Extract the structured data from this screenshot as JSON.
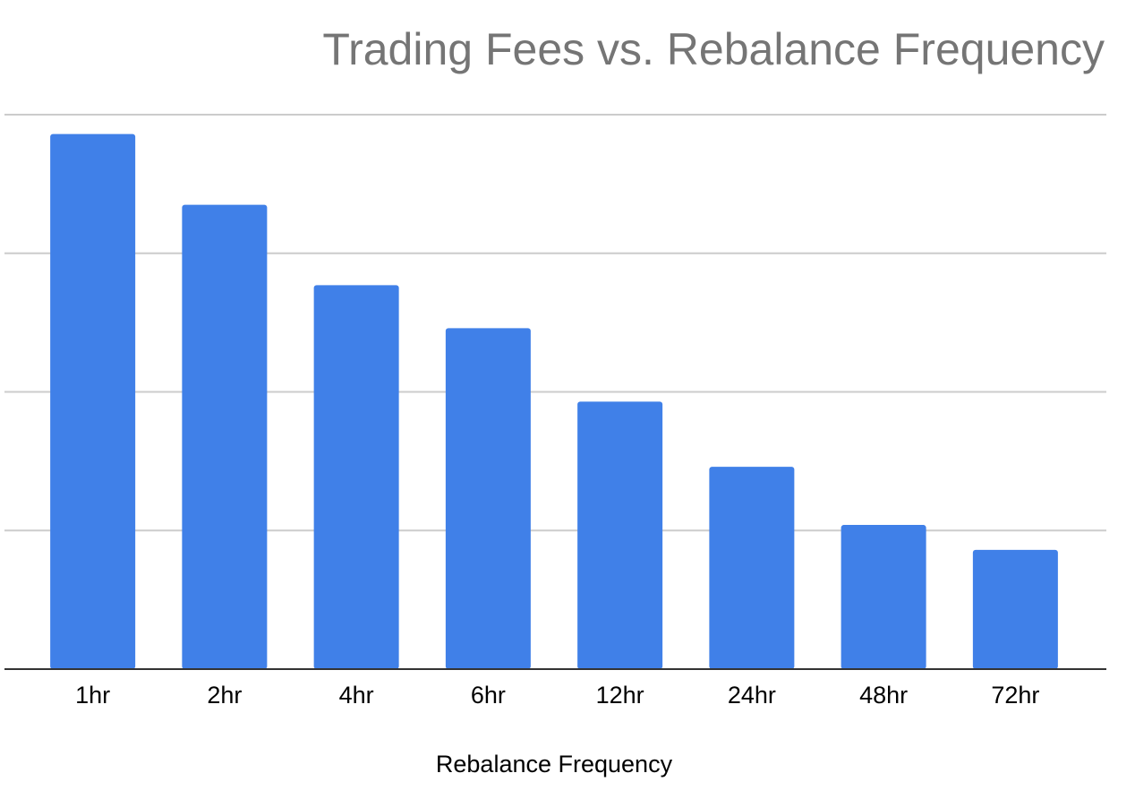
{
  "chart_data": {
    "type": "bar",
    "title": "Trading Fees vs. Rebalance Frequency",
    "xlabel": "Rebalance Frequency",
    "ylabel": "",
    "categories": [
      "1hr",
      "2hr",
      "4hr",
      "6hr",
      "12hr",
      "24hr",
      "48hr",
      "72hr"
    ],
    "series": [
      {
        "values": [
          3.86,
          3.35,
          2.77,
          2.46,
          1.93,
          1.46,
          1.04,
          0.86
        ],
        "color": "#4080e8"
      }
    ],
    "ylim": [
      0,
      4
    ],
    "y_gridlines": [
      1,
      2,
      3,
      4
    ],
    "y_tick_labels_visible": false,
    "grid": true,
    "legend": "none",
    "colors": {
      "bar": "#4080e8",
      "gridline": "#cccccc",
      "baseline": "#333333",
      "title": "#757575",
      "text": "#000000"
    }
  }
}
